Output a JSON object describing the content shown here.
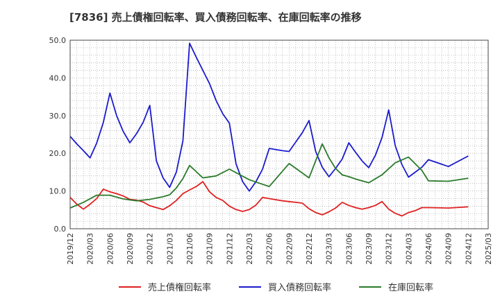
{
  "chart_data": {
    "type": "line",
    "title": "[7836]  売上債権回転率、買入債務回転率、在庫回転率の推移",
    "xlabel": "",
    "ylabel": "",
    "ylim": [
      0,
      50
    ],
    "yticks": [
      "0.0",
      "10.0",
      "20.0",
      "30.0",
      "40.0",
      "50.0"
    ],
    "xticks": [
      "2019/12",
      "2020/03",
      "2020/06",
      "2020/09",
      "2020/12",
      "2021/03",
      "2021/06",
      "2021/09",
      "2021/12",
      "2022/03",
      "2022/06",
      "2022/09",
      "2022/12",
      "2023/03",
      "2023/06",
      "2023/09",
      "2023/12",
      "2024/03",
      "2024/06",
      "2024/09",
      "2024/12",
      "2025/03"
    ],
    "x_month_range": [
      0,
      63
    ],
    "grid": true,
    "legend_position": "bottom",
    "series": [
      {
        "name": "売上債権回転率",
        "color": "#e02020",
        "x": [
          0,
          1,
          2,
          3,
          4,
          5,
          6,
          7,
          8,
          9,
          10,
          11,
          12,
          13,
          14,
          15,
          16,
          17,
          18,
          19,
          20,
          21,
          22,
          23,
          24,
          25,
          26,
          27,
          28,
          29,
          30,
          31,
          32,
          33,
          34,
          35,
          36,
          37,
          38,
          39,
          40,
          41,
          42,
          43,
          44,
          45,
          46,
          47,
          48,
          49,
          50,
          51,
          52,
          53,
          54,
          57,
          60
        ],
        "values": [
          8.3,
          6.5,
          5.2,
          6.5,
          8,
          10.5,
          9.8,
          9.3,
          8.7,
          7.8,
          7.6,
          7.1,
          6.1,
          5.6,
          5.1,
          6.1,
          7.5,
          9.3,
          10.3,
          11.2,
          12.5,
          9.8,
          8.3,
          7.5,
          6,
          5.1,
          4.6,
          5.1,
          6.3,
          8.3,
          8,
          7.7,
          7.4,
          7.2,
          7,
          6.8,
          5.3,
          4.3,
          3.7,
          4.5,
          5.5,
          7,
          6.2,
          5.6,
          5.2,
          5.6,
          6.2,
          7.2,
          5.2,
          4.1,
          3.4,
          4.3,
          4.8,
          5.6,
          5.6,
          5.5,
          5.8
        ]
      },
      {
        "name": "買入債務回転率",
        "color": "#1a1acc",
        "x": [
          0,
          1,
          2,
          3,
          4,
          5,
          6,
          7,
          8,
          9,
          10,
          11,
          12,
          13,
          14,
          15,
          16,
          17,
          18,
          19,
          20,
          21,
          22,
          23,
          24,
          25,
          26,
          27,
          28,
          29,
          30,
          31,
          32,
          33,
          34,
          35,
          36,
          37,
          38,
          39,
          40,
          41,
          42,
          43,
          44,
          45,
          46,
          47,
          48,
          49,
          50,
          51,
          52,
          53,
          54,
          57,
          60
        ],
        "values": [
          24.5,
          22.5,
          20.7,
          18.8,
          22.7,
          28.2,
          36,
          30,
          25.8,
          22.8,
          25.2,
          28.2,
          32.7,
          18,
          13.5,
          11,
          15,
          23.3,
          49.2,
          45.5,
          42,
          38.5,
          34,
          30.5,
          28,
          17.2,
          12.5,
          10,
          12.5,
          15.8,
          21.3,
          21,
          20.7,
          20.5,
          23,
          25.5,
          28.7,
          20.5,
          16.3,
          13.8,
          16,
          18.5,
          22.8,
          20.3,
          18,
          16.2,
          19.5,
          24.2,
          31.5,
          22,
          17,
          13.7,
          15,
          16.3,
          18.3,
          16.5,
          19.3
        ]
      },
      {
        "name": "在庫回転率",
        "color": "#2a7a2a",
        "x": [
          0,
          2,
          4,
          6,
          8,
          10,
          12,
          14,
          15,
          16,
          17,
          18,
          20,
          22,
          24,
          27,
          30,
          33,
          36,
          38,
          39,
          40,
          41,
          42,
          43,
          45,
          47,
          49,
          51,
          53,
          54,
          57,
          60
        ],
        "values": [
          5.5,
          7,
          8.9,
          8.9,
          7.9,
          7.4,
          7.8,
          8.5,
          9,
          10.8,
          13.3,
          16.8,
          13.5,
          14,
          15.8,
          13,
          11.2,
          17.3,
          13.5,
          22.5,
          18.8,
          16,
          14.3,
          13.8,
          13.2,
          12.2,
          14.3,
          17.5,
          19,
          15.5,
          12.7,
          12.6,
          13.4
        ]
      }
    ]
  }
}
